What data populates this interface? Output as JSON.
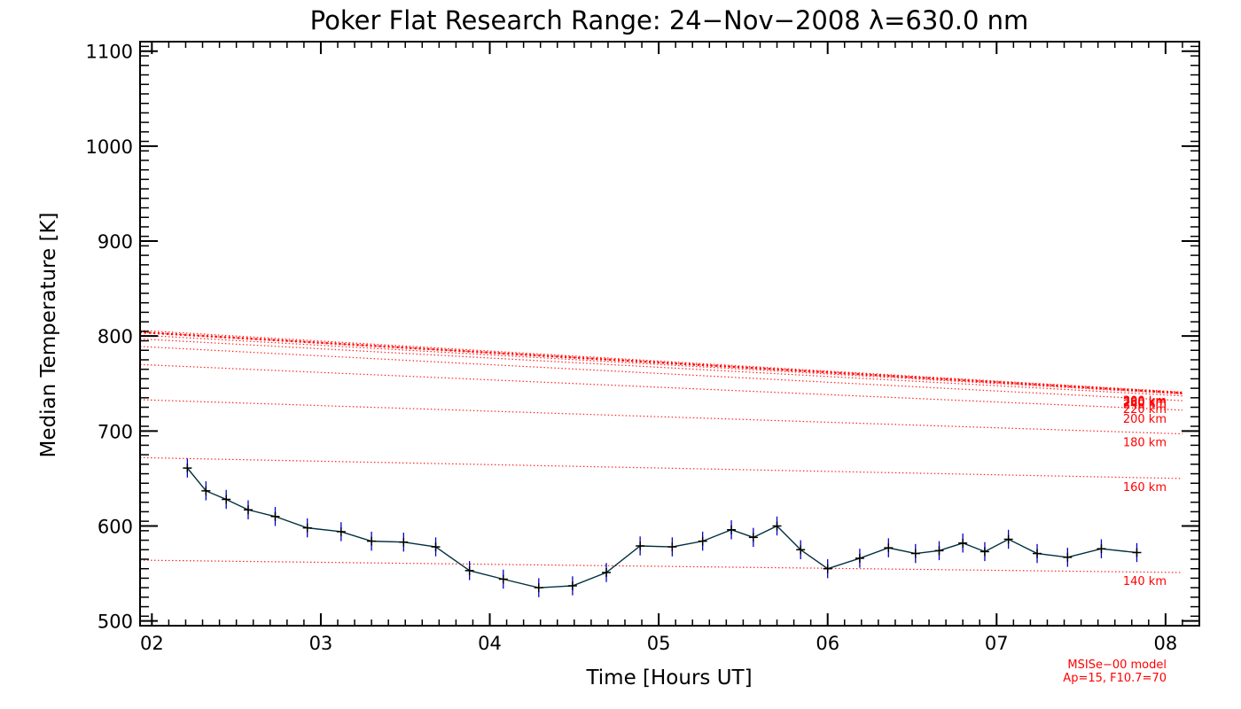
{
  "chart_data": {
    "type": "line",
    "title": "Poker Flat Research Range: 24−Nov−2008 λ=630.0 nm",
    "xlabel": "Time [Hours UT]",
    "ylabel": "Median Temperature [K]",
    "xlim": [
      1.93,
      8.2
    ],
    "ylim": [
      495,
      1110
    ],
    "x_ticks": [
      2,
      3,
      4,
      5,
      6,
      7,
      8
    ],
    "x_tick_labels": [
      "02",
      "03",
      "04",
      "05",
      "06",
      "07",
      "08"
    ],
    "y_ticks": [
      500,
      600,
      700,
      800,
      900,
      1000,
      1100
    ],
    "y_tick_labels": [
      "500",
      "600",
      "700",
      "800",
      "900",
      "1000",
      "1100"
    ],
    "series": [
      {
        "color": "#003040",
        "marker_color": "#000000",
        "errorbar_color": "#0000cc",
        "error": 10,
        "x": [
          2.21,
          2.32,
          2.44,
          2.57,
          2.73,
          2.92,
          3.12,
          3.3,
          3.49,
          3.68,
          3.88,
          4.08,
          4.29,
          4.49,
          4.69,
          4.89,
          5.08,
          5.26,
          5.43,
          5.56,
          5.7,
          5.84,
          6.0,
          6.19,
          6.36,
          6.52,
          6.66,
          6.8,
          6.93,
          7.07,
          7.24,
          7.42,
          7.62,
          7.83
        ],
        "y": [
          661,
          637,
          628,
          617,
          610,
          598,
          594,
          584,
          583,
          578,
          553,
          544,
          535,
          537,
          551,
          579,
          578,
          584,
          596,
          588,
          600,
          575,
          555,
          566,
          577,
          571,
          574,
          582,
          573,
          586,
          571,
          567,
          576,
          572
        ]
      }
    ],
    "model_series": [
      {
        "label": "140 km",
        "color": "#ff0000",
        "x": [
          1.93,
          8.1
        ],
        "y": [
          564,
          551
        ]
      },
      {
        "label": "160 km",
        "color": "#ff0000",
        "x": [
          1.93,
          8.1
        ],
        "y": [
          672,
          650
        ]
      },
      {
        "label": "180 km",
        "color": "#ff0000",
        "x": [
          1.93,
          8.1
        ],
        "y": [
          733,
          697
        ]
      },
      {
        "label": "200 km",
        "color": "#ff0000",
        "x": [
          1.93,
          8.1
        ],
        "y": [
          770,
          722
        ]
      },
      {
        "label": "220 km",
        "color": "#ff0000",
        "x": [
          1.93,
          8.1
        ],
        "y": [
          789,
          732
        ]
      },
      {
        "label": "240 km",
        "color": "#ff0000",
        "x": [
          1.93,
          8.1
        ],
        "y": [
          797,
          737
        ]
      },
      {
        "label": "260 km",
        "color": "#ff0000",
        "x": [
          1.93,
          8.1
        ],
        "y": [
          801,
          739
        ]
      },
      {
        "label": "280 km",
        "color": "#ff0000",
        "x": [
          1.93,
          8.1
        ],
        "y": [
          804,
          740
        ]
      },
      {
        "label": "300 km",
        "color": "#ff0000",
        "x": [
          1.93,
          8.1
        ],
        "y": [
          806,
          741
        ]
      }
    ],
    "note_lines": [
      "MSISe−00 model",
      "Ap=15, F10.7=70"
    ],
    "grid": false
  }
}
